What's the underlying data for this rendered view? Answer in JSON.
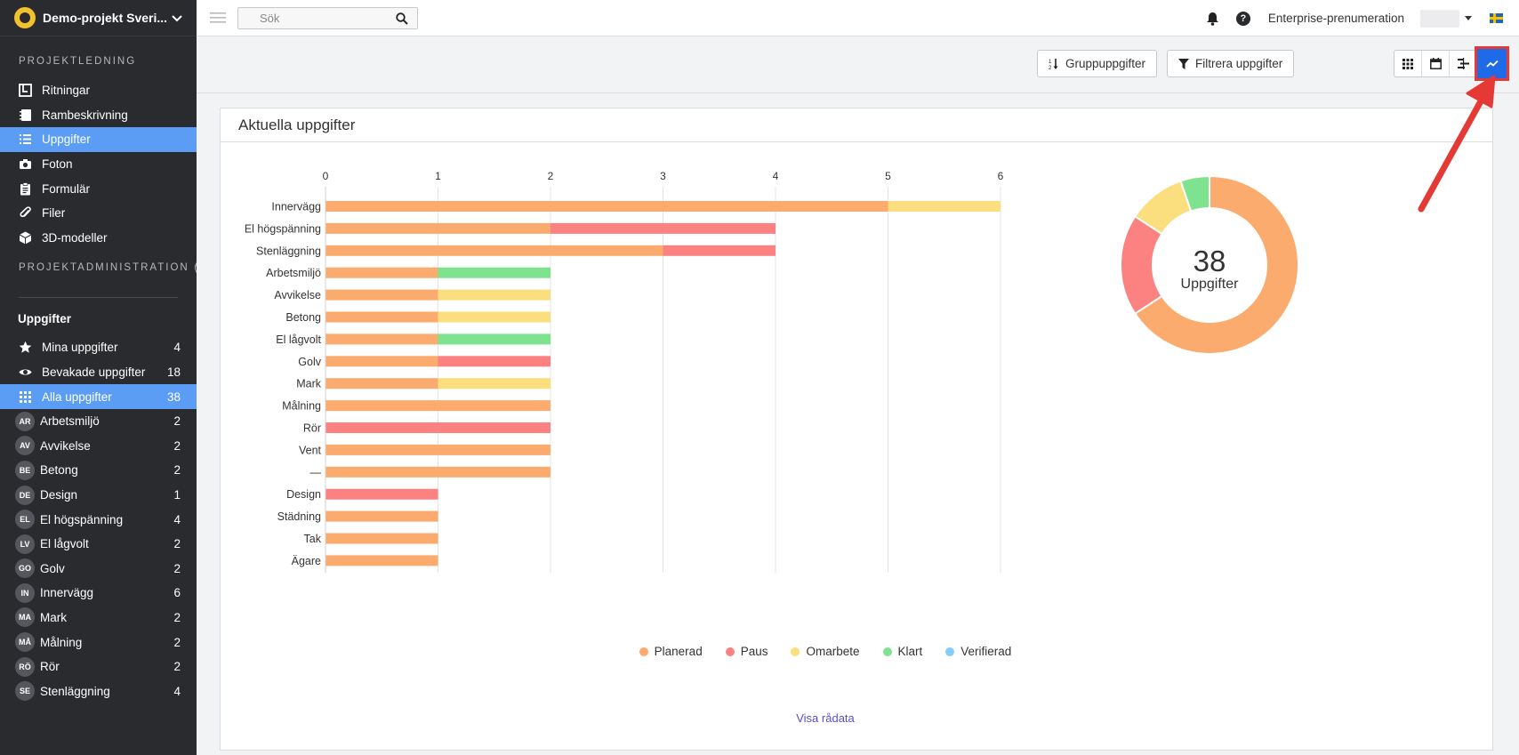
{
  "project": {
    "name": "Demo-projekt Sveri..."
  },
  "sidebar": {
    "section_management": "PROJEKTLEDNING",
    "nav": [
      {
        "label": "Ritningar",
        "icon": "blueprint-icon"
      },
      {
        "label": "Rambeskrivning",
        "icon": "notebook-icon"
      },
      {
        "label": "Uppgifter",
        "icon": "list-icon"
      },
      {
        "label": "Foton",
        "icon": "camera-icon"
      },
      {
        "label": "Formulär",
        "icon": "clipboard-icon"
      },
      {
        "label": "Filer",
        "icon": "paperclip-icon"
      },
      {
        "label": "3D-modeller",
        "icon": "cube-icon"
      }
    ],
    "section_admin": "PROJEKTADMINISTRATION",
    "tasks_head": "Uppgifter",
    "task_filters": [
      {
        "label": "Mina uppgifter",
        "count": "4",
        "icon": "star-icon"
      },
      {
        "label": "Bevakade uppgifter",
        "count": "18",
        "icon": "eye-icon"
      },
      {
        "label": "Alla uppgifter",
        "count": "38",
        "icon": "grid-icon"
      }
    ],
    "categories": [
      {
        "badge": "AR",
        "label": "Arbetsmiljö",
        "count": "2"
      },
      {
        "badge": "AV",
        "label": "Avvikelse",
        "count": "2"
      },
      {
        "badge": "BE",
        "label": "Betong",
        "count": "2"
      },
      {
        "badge": "DE",
        "label": "Design",
        "count": "1"
      },
      {
        "badge": "EL",
        "label": "El högspänning",
        "count": "4"
      },
      {
        "badge": "LV",
        "label": "El lågvolt",
        "count": "2"
      },
      {
        "badge": "GO",
        "label": "Golv",
        "count": "2"
      },
      {
        "badge": "IN",
        "label": "Innervägg",
        "count": "6"
      },
      {
        "badge": "MA",
        "label": "Mark",
        "count": "2"
      },
      {
        "badge": "MÅ",
        "label": "Målning",
        "count": "2"
      },
      {
        "badge": "RÖ",
        "label": "Rör",
        "count": "2"
      },
      {
        "badge": "SE",
        "label": "Stenläggning",
        "count": "4"
      }
    ]
  },
  "topbar": {
    "search_placeholder": "Sök",
    "plan": "Enterprise-prenumeration"
  },
  "toolbar": {
    "group_label": "Gruppuppgifter",
    "filter_label": "Filtrera uppgifter"
  },
  "card": {
    "title": "Aktuella uppgifter",
    "raw_link": "Visa rådata",
    "donut_total": "38",
    "donut_label": "Uppgifter"
  },
  "colors": {
    "Planerad": "#fbab6d",
    "Paus": "#fc8181",
    "Omarbete": "#fbdf7e",
    "Klart": "#7ee38e",
    "Verifierad": "#86cdf8",
    "accent": "#5b9cf5",
    "annotation": "#e53935"
  },
  "chart_data": [
    {
      "type": "bar",
      "orientation": "horizontal",
      "stacked": true,
      "categories": [
        "Innervägg",
        "El högspänning",
        "Stenläggning",
        "Arbetsmiljö",
        "Avvikelse",
        "Betong",
        "El lågvolt",
        "Golv",
        "Mark",
        "Målning",
        "Rör",
        "Vent",
        "—",
        "Design",
        "Städning",
        "Tak",
        "Ägare"
      ],
      "series": [
        {
          "name": "Planerad",
          "values": [
            5,
            2,
            3,
            1,
            1,
            1,
            1,
            1,
            1,
            2,
            0,
            2,
            2,
            0,
            1,
            1,
            1
          ]
        },
        {
          "name": "Paus",
          "values": [
            0,
            2,
            1,
            0,
            0,
            0,
            0,
            1,
            0,
            0,
            2,
            0,
            0,
            1,
            0,
            0,
            0
          ]
        },
        {
          "name": "Omarbete",
          "values": [
            1,
            0,
            0,
            0,
            1,
            1,
            0,
            0,
            1,
            0,
            0,
            0,
            0,
            0,
            0,
            0,
            0
          ]
        },
        {
          "name": "Klart",
          "values": [
            0,
            0,
            0,
            1,
            0,
            0,
            1,
            0,
            0,
            0,
            0,
            0,
            0,
            0,
            0,
            0,
            0
          ]
        },
        {
          "name": "Verifierad",
          "values": [
            0,
            0,
            0,
            0,
            0,
            0,
            0,
            0,
            0,
            0,
            0,
            0,
            0,
            0,
            0,
            0,
            0
          ]
        }
      ],
      "xticks": [
        0,
        1,
        2,
        3,
        4,
        5,
        6
      ],
      "xlim": [
        0,
        6
      ],
      "axis_position": "top",
      "grid": true,
      "legend": "bottom"
    },
    {
      "type": "pie",
      "donut": true,
      "labels": [
        "Planerad",
        "Paus",
        "Omarbete",
        "Klart",
        "Verifierad"
      ],
      "values": [
        25,
        7,
        4,
        2,
        0
      ]
    }
  ]
}
